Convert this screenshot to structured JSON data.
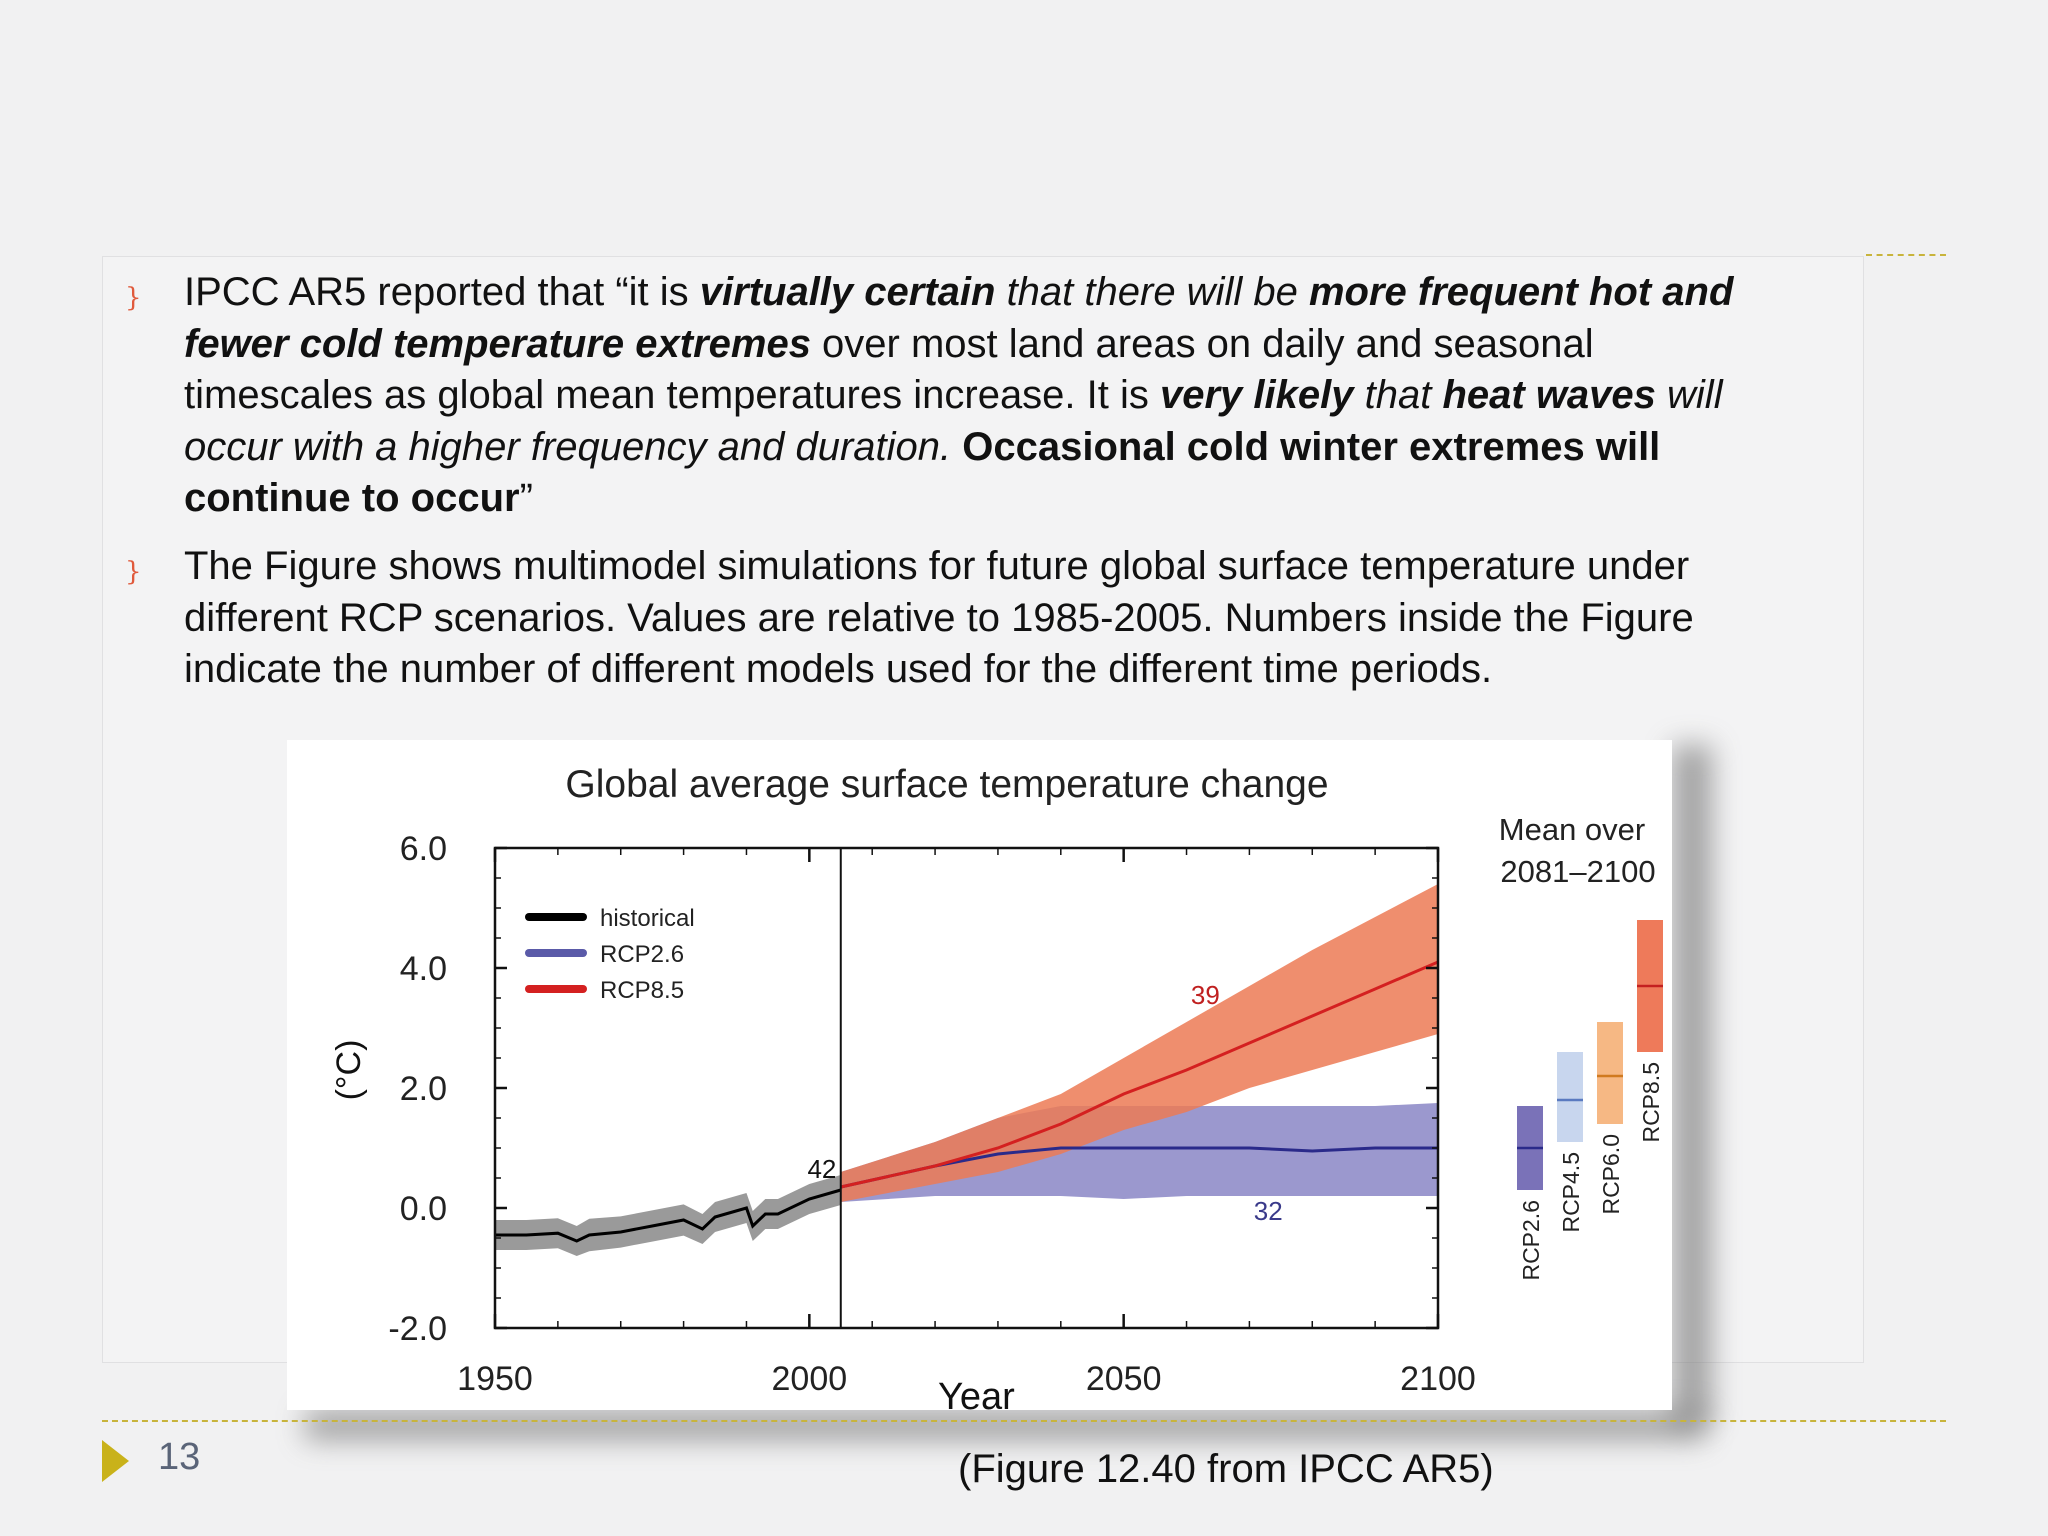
{
  "slide": {
    "bullet_glyph": "}",
    "p1": {
      "s1": "IPCC AR5 reported that “it is ",
      "s2": "virtually certain",
      "s3": " that there will be ",
      "s4": "more frequent hot and",
      "s5": "fewer cold temperature extremes",
      "s6": " over most land areas on daily and seasonal",
      "s7": "timescales as global mean temperatures increase. It is ",
      "s8": "very likely",
      "s9": " that ",
      "s10": "heat waves",
      "s11": " will",
      "s12": "occur with a higher frequency and duration. ",
      "s13": "Occasional cold winter extremes will",
      "s14": "continue to occur",
      "s15": "”"
    },
    "p2": {
      "line1": "The Figure shows multimodel simulations for future global surface temperature under",
      "line2": "different RCP scenarios. Values are relative to 1985-2005. Numbers inside the Figure",
      "line3": "indicate the number of different models used for the different time periods."
    },
    "year_label": "Year",
    "caption": "(Figure 12.40 from IPCC AR5)",
    "page_number": "13",
    "colors": {
      "accent": "#c9b21a",
      "rule": "#c8b43c",
      "page_number": "#5a6478"
    }
  },
  "chart_data": {
    "type": "line",
    "title": "Global average surface temperature change",
    "ylabel": "(°C)",
    "xlabel": "",
    "xlim": [
      1950,
      2100
    ],
    "ylim": [
      -2.0,
      6.0
    ],
    "xticks": [
      "1950",
      "2000",
      "2050",
      "2100"
    ],
    "yticks": [
      "6.0",
      "4.0",
      "2.0",
      "0.0",
      "-2.0"
    ],
    "grid": false,
    "legend_position": "top-left",
    "series": [
      {
        "name": "historical",
        "color": "#000000",
        "band_color": "#9a9a9a",
        "x": [
          1950,
          1955,
          1960,
          1963,
          1965,
          1970,
          1975,
          1980,
          1983,
          1985,
          1990,
          1991,
          1993,
          1995,
          2000,
          2005
        ],
        "y": [
          -0.45,
          -0.45,
          -0.42,
          -0.55,
          -0.45,
          -0.4,
          -0.3,
          -0.2,
          -0.35,
          -0.15,
          0.0,
          -0.3,
          -0.1,
          -0.1,
          0.15,
          0.3
        ],
        "lower": [
          -0.7,
          -0.7,
          -0.67,
          -0.8,
          -0.72,
          -0.66,
          -0.56,
          -0.46,
          -0.6,
          -0.4,
          -0.25,
          -0.55,
          -0.35,
          -0.35,
          -0.1,
          0.05
        ],
        "upper": [
          -0.2,
          -0.2,
          -0.17,
          -0.3,
          -0.18,
          -0.14,
          -0.04,
          0.06,
          -0.1,
          0.1,
          0.25,
          -0.05,
          0.15,
          0.15,
          0.4,
          0.55
        ]
      },
      {
        "name": "RCP2.6",
        "color": "#2a2a8a",
        "band_color": "#8a86c6",
        "x": [
          2005,
          2020,
          2030,
          2040,
          2050,
          2060,
          2070,
          2080,
          2090,
          2100
        ],
        "y": [
          0.35,
          0.7,
          0.9,
          1.0,
          1.0,
          1.0,
          1.0,
          0.95,
          1.0,
          1.0
        ],
        "lower": [
          0.1,
          0.2,
          0.2,
          0.2,
          0.15,
          0.2,
          0.2,
          0.2,
          0.2,
          0.2
        ],
        "upper": [
          0.6,
          1.1,
          1.5,
          1.7,
          1.7,
          1.7,
          1.7,
          1.7,
          1.7,
          1.75
        ]
      },
      {
        "name": "RCP8.5",
        "color": "#d42020",
        "band_color": "#ec7a55",
        "x": [
          2005,
          2020,
          2030,
          2040,
          2050,
          2060,
          2070,
          2080,
          2090,
          2100
        ],
        "y": [
          0.35,
          0.7,
          1.0,
          1.4,
          1.9,
          2.3,
          2.75,
          3.2,
          3.65,
          4.1
        ],
        "lower": [
          0.1,
          0.4,
          0.6,
          0.9,
          1.3,
          1.6,
          2.0,
          2.3,
          2.6,
          2.9
        ],
        "upper": [
          0.6,
          1.1,
          1.5,
          1.9,
          2.5,
          3.1,
          3.7,
          4.3,
          4.85,
          5.4
        ]
      }
    ],
    "annotations": [
      {
        "text": "42",
        "x": 2002,
        "y": 0.5,
        "color": "#111111"
      },
      {
        "text": "39",
        "x": 2063,
        "y": 3.4,
        "color": "#c02020"
      },
      {
        "text": "32",
        "x": 2073,
        "y": -0.2,
        "color": "#3a3a8a"
      }
    ],
    "divider_year": 2005,
    "side_panel": {
      "title_line1": "Mean over",
      "title_line2": "2081–2100",
      "bars": [
        {
          "label": "RCP2.6",
          "low": 0.3,
          "high": 1.7,
          "mean": 1.0,
          "color": "#7a72b8",
          "mean_color": "#2a2a8a"
        },
        {
          "label": "RCP4.5",
          "low": 1.1,
          "high": 2.6,
          "mean": 1.8,
          "color": "#c8d6ee",
          "mean_color": "#5a7ac0"
        },
        {
          "label": "RCP6.0",
          "low": 1.4,
          "high": 3.1,
          "mean": 2.2,
          "color": "#f6b884",
          "mean_color": "#d07a20"
        },
        {
          "label": "RCP8.5",
          "low": 2.6,
          "high": 4.8,
          "mean": 3.7,
          "color": "#ee7a5a",
          "mean_color": "#c42020"
        }
      ]
    }
  }
}
